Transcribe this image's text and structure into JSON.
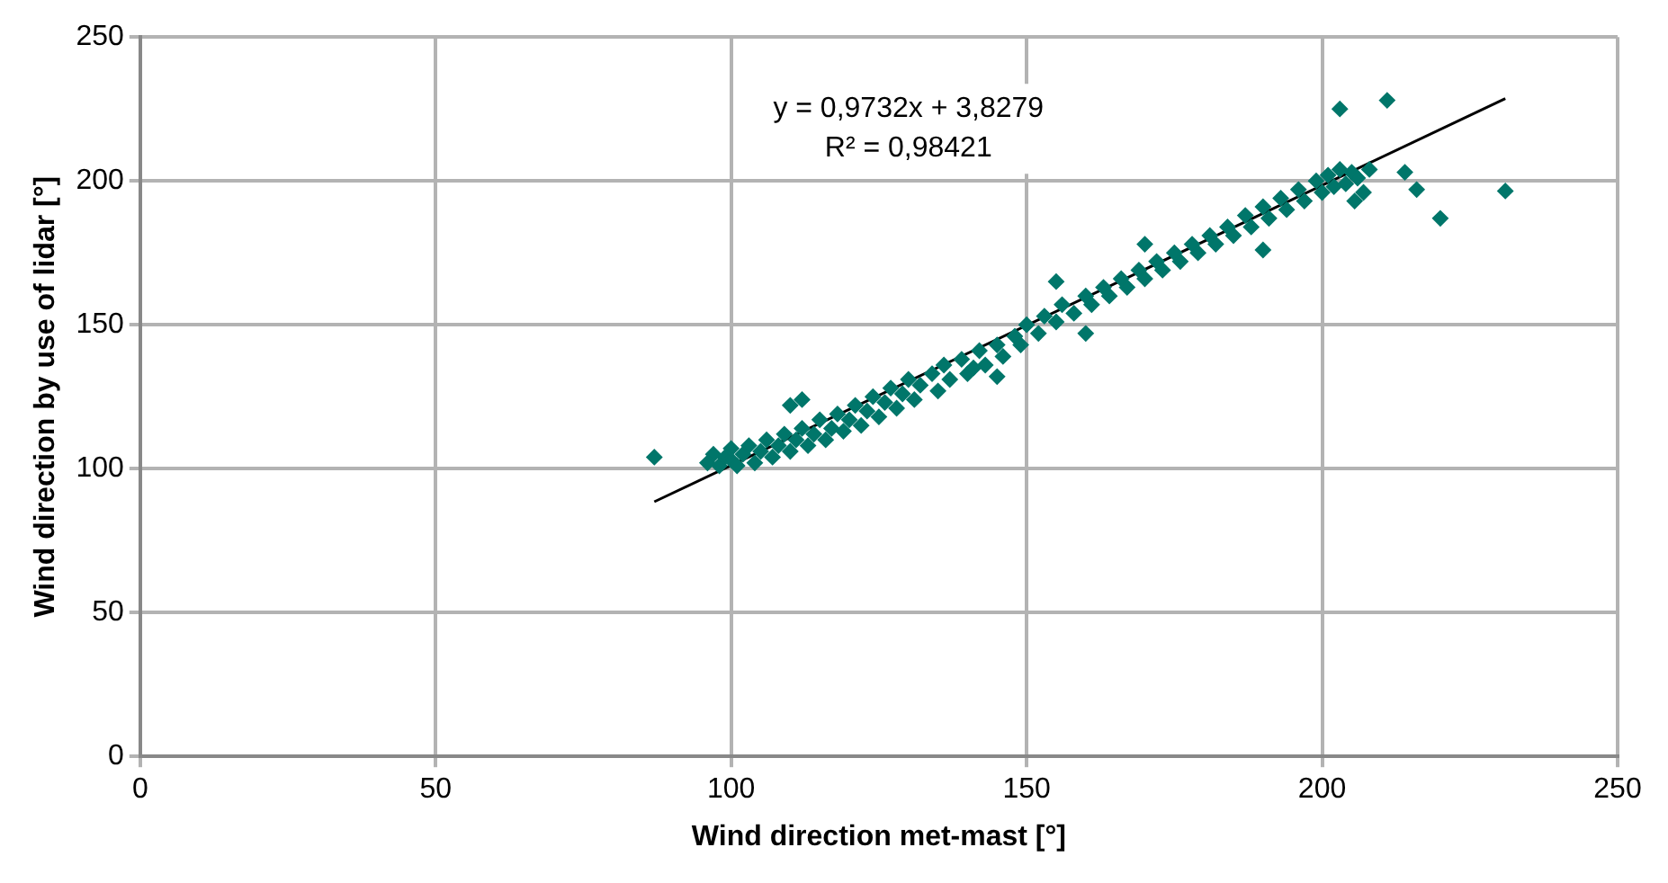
{
  "chart_data": {
    "type": "scatter",
    "xlabel": "Wind direction met-mast [°]",
    "ylabel": "Wind direction by use of lidar [°]",
    "annotations": [
      "y = 0,9732x + 3,8279",
      "R² = 0,98421"
    ],
    "xlim": [
      0,
      250
    ],
    "ylim": [
      0,
      250
    ],
    "xticks": [
      0,
      50,
      100,
      150,
      200,
      250
    ],
    "yticks": [
      0,
      50,
      100,
      150,
      200,
      250
    ],
    "grid": true,
    "legend": false,
    "series": [
      {
        "color": "#00766a",
        "marker": "diamond",
        "x": [
          87,
          96,
          97,
          98,
          99,
          100,
          100,
          101,
          102,
          103,
          104,
          105,
          106,
          107,
          108,
          109,
          110,
          110,
          111,
          112,
          112,
          113,
          114,
          115,
          116,
          117,
          118,
          119,
          120,
          121,
          122,
          123,
          124,
          125,
          126,
          127,
          128,
          129,
          130,
          131,
          132,
          134,
          135,
          136,
          137,
          139,
          140,
          141,
          142,
          143,
          145,
          145,
          146,
          148,
          149,
          150,
          152,
          153,
          155,
          155,
          156,
          158,
          160,
          160,
          161,
          163,
          164,
          166,
          167,
          169,
          170,
          170,
          172,
          173,
          175,
          176,
          178,
          179,
          181,
          182,
          184,
          185,
          187,
          188,
          190,
          190,
          191,
          193,
          194,
          196,
          197,
          199,
          200,
          201,
          202,
          203,
          203,
          204,
          205,
          205.5,
          206,
          207,
          208,
          211,
          214,
          216,
          220,
          231
        ],
        "values": [
          104,
          102,
          105,
          101,
          104,
          103,
          107,
          101,
          105,
          108,
          102,
          106,
          110,
          104,
          108,
          112,
          106,
          122,
          110,
          114,
          124,
          108,
          112,
          117,
          110,
          114,
          119,
          113,
          117,
          122,
          115,
          120,
          125,
          118,
          123,
          128,
          121,
          126,
          131,
          124,
          129,
          133,
          127,
          136,
          131,
          138,
          133,
          135,
          141,
          136,
          143,
          132,
          139,
          146,
          143,
          150,
          147,
          153,
          151,
          165,
          157,
          154,
          160,
          147,
          157,
          163,
          160,
          166,
          163,
          169,
          166,
          178,
          172,
          169,
          175,
          172,
          178,
          175,
          181,
          178,
          184,
          181,
          188,
          184,
          191,
          176,
          187,
          194,
          190,
          197,
          193,
          200,
          196,
          202,
          198,
          204,
          225,
          199,
          203,
          193,
          201,
          196,
          204,
          228,
          203,
          197,
          187,
          196.5
        ]
      },
      {
        "type": "line",
        "color": "#000000",
        "marker": "none",
        "line_style": "solid",
        "x": [
          87,
          231
        ],
        "values": [
          88.5,
          228.6
        ]
      }
    ]
  }
}
